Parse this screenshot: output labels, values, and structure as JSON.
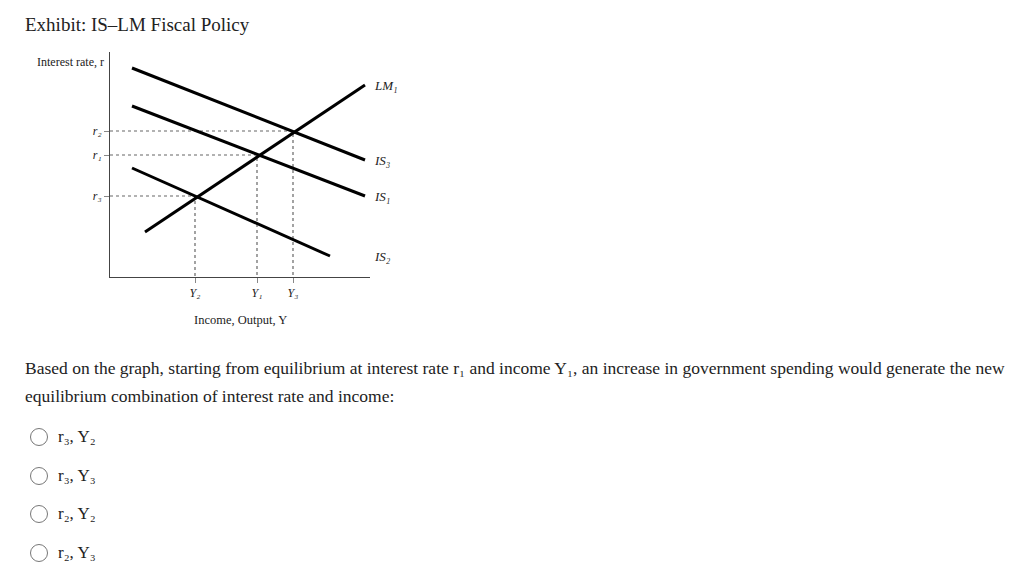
{
  "title": "Exhibit: IS–LM Fiscal Policy",
  "chart_data": {
    "type": "line",
    "xlabel": "Income, Output, Y",
    "ylabel": "Interest rate, r",
    "xlim": [
      0,
      260
    ],
    "ylim": [
      0,
      225
    ],
    "xticks": [
      {
        "value": 85,
        "label": "Y₂"
      },
      {
        "value": 147,
        "label": "Y₁"
      },
      {
        "value": 183,
        "label": "Y₃"
      }
    ],
    "yticks": [
      {
        "value": 146,
        "label": "r₂"
      },
      {
        "value": 122,
        "label": "r₁"
      },
      {
        "value": 81,
        "label": "r₃"
      }
    ],
    "series": [
      {
        "name": "LM₁",
        "color": "#000000",
        "x": [
          35,
          255
        ],
        "values": [
          45,
          192
        ]
      },
      {
        "name": "IS₃",
        "color": "#000000",
        "x": [
          22,
          255
        ],
        "values": [
          209,
          117
        ]
      },
      {
        "name": "IS₁",
        "color": "#000000",
        "x": [
          22,
          255
        ],
        "values": [
          171,
          81
        ]
      },
      {
        "name": "IS₂",
        "color": "#000000",
        "x": [
          22,
          220
        ],
        "values": [
          109,
          21
        ]
      }
    ],
    "equilibria": [
      {
        "x": 147,
        "y": 122
      },
      {
        "x": 183,
        "y": 146
      },
      {
        "x": 85,
        "y": 81
      }
    ],
    "grid": false
  },
  "question": "Based on the graph, starting from equilibrium at interest rate r₁ and income Y₁, an increase in government spending would generate the new equilibrium combination of interest rate and income:",
  "options": [
    "r₃, Y₂",
    "r₃, Y₃",
    "r₂, Y₂",
    "r₂, Y₃"
  ]
}
